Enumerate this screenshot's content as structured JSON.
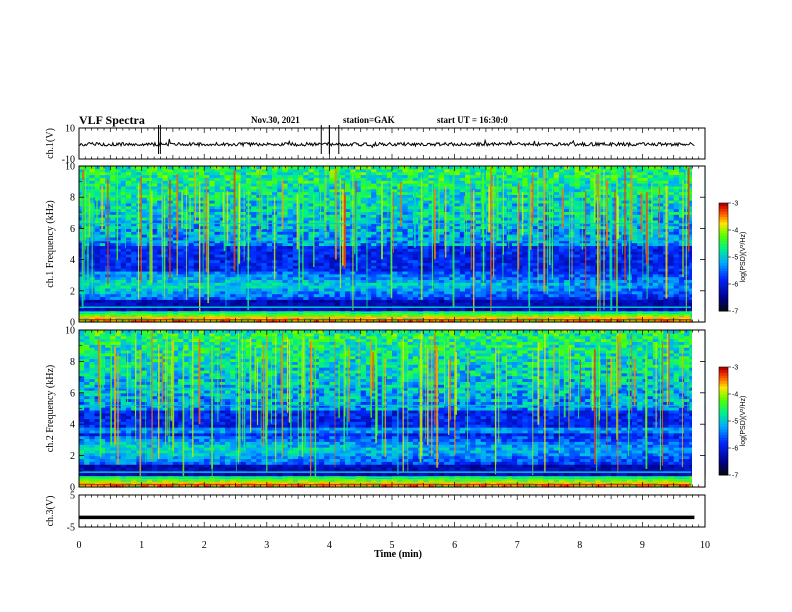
{
  "header": {
    "title": "VLF Spectra",
    "date": "Nov.30, 2021",
    "station": "station=GAK",
    "start": "start UT = 16:30:0"
  },
  "chart_data": [
    {
      "type": "line",
      "ylabel": "ch.1(V)",
      "ylim": [
        -10,
        10
      ],
      "yticks": [
        "10",
        "-10"
      ],
      "xlim": [
        0,
        10
      ],
      "baseline": -0.5
    },
    {
      "type": "heatmap",
      "ylabel": "ch.1 Frequency (kHz)",
      "ylim": [
        0,
        10
      ],
      "yticks": [
        "0",
        "2",
        "4",
        "6",
        "8",
        "10"
      ],
      "xlim": [
        0,
        10
      ],
      "colorbar": {
        "label": "log(PSD)(V²/Hz)",
        "range": [
          -7,
          -3
        ],
        "ticks": [
          "-3",
          "-4",
          "-5",
          "-6",
          "-7"
        ]
      },
      "seed": 11
    },
    {
      "type": "heatmap",
      "ylabel": "ch.2 Frequency (kHz)",
      "ylim": [
        0,
        10
      ],
      "yticks": [
        "0",
        "2",
        "4",
        "6",
        "8",
        "10"
      ],
      "xlim": [
        0,
        10
      ],
      "colorbar": {
        "label": "log(PSD)(V²/Hz)",
        "range": [
          -7,
          -3
        ],
        "ticks": [
          "-3",
          "-4",
          "-5",
          "-6",
          "-7"
        ]
      },
      "seed": 29
    },
    {
      "type": "line",
      "ylabel": "ch.3(V)",
      "ylim": [
        -5,
        5
      ],
      "yticks": [
        "5",
        "-5"
      ],
      "xlim": [
        0,
        10
      ],
      "baseline": -2
    }
  ],
  "xaxis": {
    "label": "Time (min)",
    "ticks": [
      "0",
      "1",
      "2",
      "3",
      "4",
      "5",
      "6",
      "7",
      "8",
      "9",
      "10"
    ]
  }
}
